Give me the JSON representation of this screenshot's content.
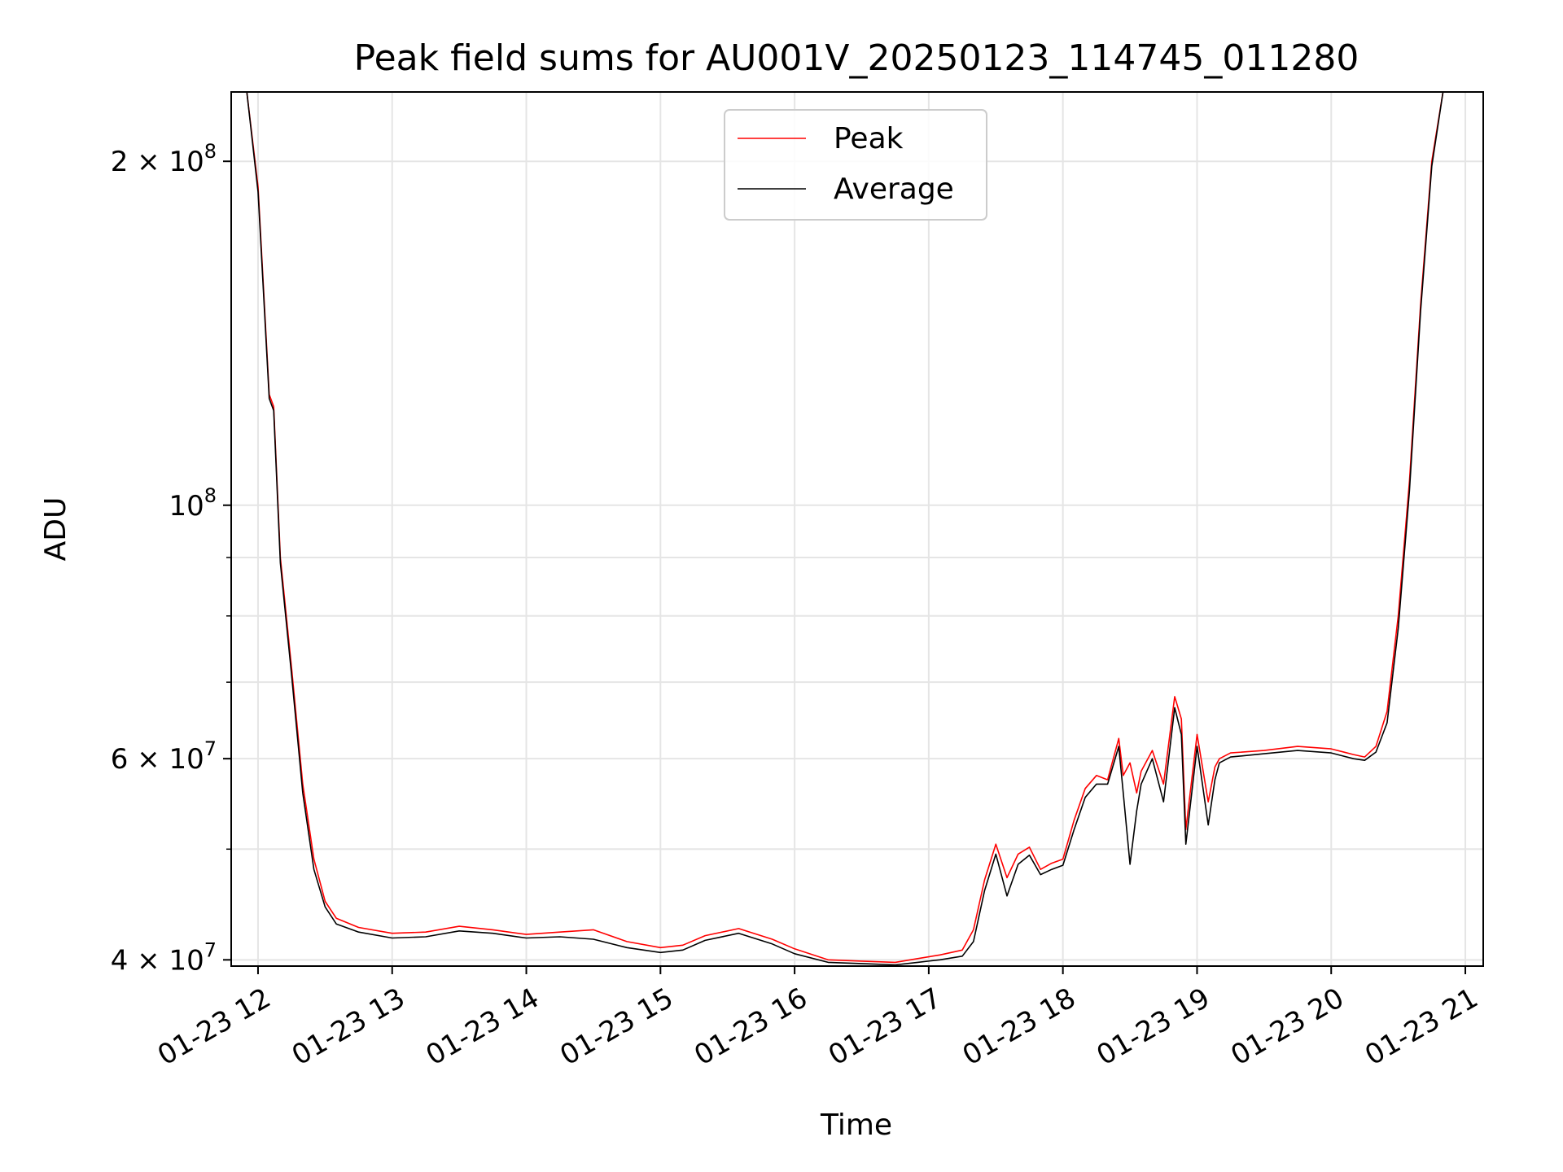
{
  "chart_data": {
    "type": "line",
    "title": "Peak field sums for AU001V_20250123_114745_011280",
    "xlabel": "Time",
    "ylabel": "ADU",
    "yscale": "log",
    "ylim": [
      39500000,
      230000000
    ],
    "xlim": [
      "2025-01-23 11:48",
      "2025-01-23 21:08"
    ],
    "grid": true,
    "legend": "upper center",
    "x_ticks": [
      "01-23 12",
      "01-23 13",
      "01-23 14",
      "01-23 15",
      "01-23 16",
      "01-23 17",
      "01-23 18",
      "01-23 19",
      "01-23 20",
      "01-23 21"
    ],
    "y_ticks": [
      {
        "label": "2 × 10",
        "exp": "8",
        "value": 200000000
      },
      {
        "label": "10",
        "exp": "8",
        "value": 100000000
      },
      {
        "label": "6 × 10",
        "exp": "7",
        "value": 60000000
      },
      {
        "label": "4 × 10",
        "exp": "7",
        "value": 40000000
      }
    ],
    "series": [
      {
        "name": "Peak",
        "color": "#ff0000",
        "x": [
          "2025-01-23 11:48",
          "2025-01-23 11:55",
          "2025-01-23 12:00",
          "2025-01-23 12:05",
          "2025-01-23 12:07",
          "2025-01-23 12:10",
          "2025-01-23 12:15",
          "2025-01-23 12:20",
          "2025-01-23 12:25",
          "2025-01-23 12:30",
          "2025-01-23 12:35",
          "2025-01-23 12:45",
          "2025-01-23 13:00",
          "2025-01-23 13:15",
          "2025-01-23 13:30",
          "2025-01-23 13:45",
          "2025-01-23 14:00",
          "2025-01-23 14:15",
          "2025-01-23 14:30",
          "2025-01-23 14:45",
          "2025-01-23 15:00",
          "2025-01-23 15:10",
          "2025-01-23 15:20",
          "2025-01-23 15:35",
          "2025-01-23 15:50",
          "2025-01-23 16:00",
          "2025-01-23 16:15",
          "2025-01-23 16:30",
          "2025-01-23 16:45",
          "2025-01-23 16:55",
          "2025-01-23 17:05",
          "2025-01-23 17:15",
          "2025-01-23 17:20",
          "2025-01-23 17:25",
          "2025-01-23 17:30",
          "2025-01-23 17:35",
          "2025-01-23 17:40",
          "2025-01-23 17:45",
          "2025-01-23 17:50",
          "2025-01-23 17:55",
          "2025-01-23 18:00",
          "2025-01-23 18:05",
          "2025-01-23 18:10",
          "2025-01-23 18:15",
          "2025-01-23 18:20",
          "2025-01-23 18:25",
          "2025-01-23 18:27",
          "2025-01-23 18:30",
          "2025-01-23 18:33",
          "2025-01-23 18:35",
          "2025-01-23 18:40",
          "2025-01-23 18:45",
          "2025-01-23 18:50",
          "2025-01-23 18:53",
          "2025-01-23 18:55",
          "2025-01-23 19:00",
          "2025-01-23 19:05",
          "2025-01-23 19:08",
          "2025-01-23 19:10",
          "2025-01-23 19:15",
          "2025-01-23 19:30",
          "2025-01-23 19:45",
          "2025-01-23 20:00",
          "2025-01-23 20:10",
          "2025-01-23 20:15",
          "2025-01-23 20:20",
          "2025-01-23 20:25",
          "2025-01-23 20:30",
          "2025-01-23 20:35",
          "2025-01-23 20:40",
          "2025-01-23 20:45",
          "2025-01-23 20:50",
          "2025-01-23 20:53"
        ],
        "values": [
          230000000,
          230000000,
          190000000,
          125000000,
          122000000,
          90000000,
          72000000,
          57000000,
          49000000,
          45000000,
          43500000,
          42700000,
          42200000,
          42300000,
          42800000,
          42500000,
          42100000,
          42300000,
          42500000,
          41500000,
          41000000,
          41200000,
          42000000,
          42600000,
          41700000,
          40900000,
          40000000,
          39900000,
          39800000,
          40100000,
          40400000,
          40800000,
          42500000,
          47000000,
          50500000,
          47200000,
          49500000,
          50200000,
          48000000,
          48600000,
          49000000,
          53000000,
          56500000,
          58000000,
          57500000,
          62500000,
          58000000,
          59500000,
          56000000,
          58500000,
          61000000,
          57000000,
          68000000,
          65000000,
          52000000,
          63000000,
          55000000,
          59000000,
          60000000,
          60700000,
          61000000,
          61500000,
          61200000,
          60500000,
          60200000,
          61500000,
          66000000,
          80000000,
          105000000,
          150000000,
          200000000,
          230000000,
          230000000
        ]
      },
      {
        "name": "Average",
        "color": "#000000",
        "x": [
          "2025-01-23 11:48",
          "2025-01-23 11:55",
          "2025-01-23 12:00",
          "2025-01-23 12:05",
          "2025-01-23 12:07",
          "2025-01-23 12:10",
          "2025-01-23 12:15",
          "2025-01-23 12:20",
          "2025-01-23 12:25",
          "2025-01-23 12:30",
          "2025-01-23 12:35",
          "2025-01-23 12:45",
          "2025-01-23 13:00",
          "2025-01-23 13:15",
          "2025-01-23 13:30",
          "2025-01-23 13:45",
          "2025-01-23 14:00",
          "2025-01-23 14:15",
          "2025-01-23 14:30",
          "2025-01-23 14:45",
          "2025-01-23 15:00",
          "2025-01-23 15:10",
          "2025-01-23 15:20",
          "2025-01-23 15:35",
          "2025-01-23 15:50",
          "2025-01-23 16:00",
          "2025-01-23 16:15",
          "2025-01-23 16:30",
          "2025-01-23 16:45",
          "2025-01-23 16:55",
          "2025-01-23 17:05",
          "2025-01-23 17:15",
          "2025-01-23 17:20",
          "2025-01-23 17:25",
          "2025-01-23 17:30",
          "2025-01-23 17:35",
          "2025-01-23 17:40",
          "2025-01-23 17:45",
          "2025-01-23 17:50",
          "2025-01-23 17:55",
          "2025-01-23 18:00",
          "2025-01-23 18:05",
          "2025-01-23 18:10",
          "2025-01-23 18:15",
          "2025-01-23 18:20",
          "2025-01-23 18:25",
          "2025-01-23 18:27",
          "2025-01-23 18:30",
          "2025-01-23 18:33",
          "2025-01-23 18:35",
          "2025-01-23 18:40",
          "2025-01-23 18:45",
          "2025-01-23 18:50",
          "2025-01-23 18:53",
          "2025-01-23 18:55",
          "2025-01-23 19:00",
          "2025-01-23 19:05",
          "2025-01-23 19:08",
          "2025-01-23 19:10",
          "2025-01-23 19:15",
          "2025-01-23 19:30",
          "2025-01-23 19:45",
          "2025-01-23 20:00",
          "2025-01-23 20:10",
          "2025-01-23 20:15",
          "2025-01-23 20:20",
          "2025-01-23 20:25",
          "2025-01-23 20:30",
          "2025-01-23 20:35",
          "2025-01-23 20:40",
          "2025-01-23 20:45",
          "2025-01-23 20:50",
          "2025-01-23 20:53"
        ],
        "values": [
          230000000,
          230000000,
          188000000,
          124000000,
          121000000,
          89000000,
          71000000,
          56000000,
          48000000,
          44500000,
          43000000,
          42300000,
          41800000,
          41900000,
          42400000,
          42200000,
          41800000,
          41900000,
          41700000,
          41000000,
          40600000,
          40800000,
          41600000,
          42200000,
          41300000,
          40500000,
          39800000,
          39700000,
          39600000,
          39800000,
          40000000,
          40300000,
          41500000,
          46000000,
          49500000,
          45500000,
          48500000,
          49400000,
          47500000,
          48000000,
          48400000,
          52000000,
          55500000,
          57000000,
          57000000,
          61500000,
          56000000,
          48500000,
          54000000,
          57000000,
          60000000,
          55000000,
          66500000,
          63000000,
          50500000,
          61500000,
          52500000,
          57500000,
          59500000,
          60200000,
          60600000,
          61000000,
          60700000,
          60000000,
          59800000,
          60800000,
          64500000,
          78000000,
          103000000,
          148000000,
          198000000,
          230000000,
          230000000
        ]
      }
    ]
  }
}
